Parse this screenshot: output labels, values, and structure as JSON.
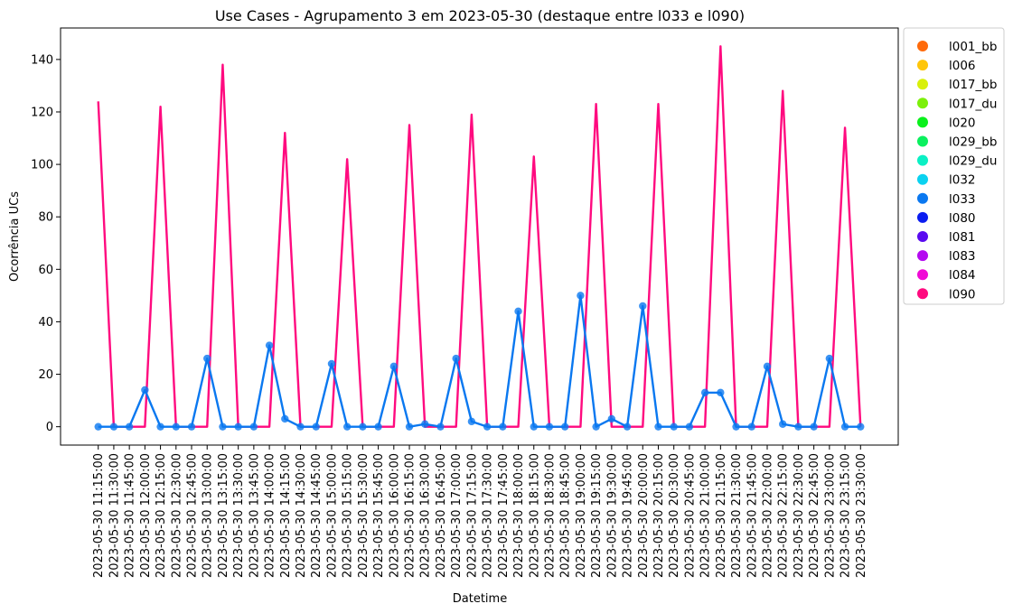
{
  "chart_data": {
    "type": "line",
    "title": "Use Cases - Agrupamento 3 em 2023-05-30 (destaque entre l033 e l090)",
    "xlabel": "Datetime",
    "ylabel": "Ocorrência UCs",
    "ylim": [
      -7,
      152
    ],
    "yticks": [
      0,
      20,
      40,
      60,
      80,
      100,
      120,
      140
    ],
    "grid": false,
    "legend_position": "outside-right",
    "x": [
      "2023-05-30 11:15:00",
      "2023-05-30 11:30:00",
      "2023-05-30 11:45:00",
      "2023-05-30 12:00:00",
      "2023-05-30 12:15:00",
      "2023-05-30 12:30:00",
      "2023-05-30 12:45:00",
      "2023-05-30 13:00:00",
      "2023-05-30 13:15:00",
      "2023-05-30 13:30:00",
      "2023-05-30 13:45:00",
      "2023-05-30 14:00:00",
      "2023-05-30 14:15:00",
      "2023-05-30 14:30:00",
      "2023-05-30 14:45:00",
      "2023-05-30 15:00:00",
      "2023-05-30 15:15:00",
      "2023-05-30 15:30:00",
      "2023-05-30 15:45:00",
      "2023-05-30 16:00:00",
      "2023-05-30 16:15:00",
      "2023-05-30 16:30:00",
      "2023-05-30 16:45:00",
      "2023-05-30 17:00:00",
      "2023-05-30 17:15:00",
      "2023-05-30 17:30:00",
      "2023-05-30 17:45:00",
      "2023-05-30 18:00:00",
      "2023-05-30 18:15:00",
      "2023-05-30 18:30:00",
      "2023-05-30 18:45:00",
      "2023-05-30 19:00:00",
      "2023-05-30 19:15:00",
      "2023-05-30 19:30:00",
      "2023-05-30 19:45:00",
      "2023-05-30 20:00:00",
      "2023-05-30 20:15:00",
      "2023-05-30 20:30:00",
      "2023-05-30 20:45:00",
      "2023-05-30 21:00:00",
      "2023-05-30 21:15:00",
      "2023-05-30 21:30:00",
      "2023-05-30 21:45:00",
      "2023-05-30 22:00:00",
      "2023-05-30 22:15:00",
      "2023-05-30 22:30:00",
      "2023-05-30 22:45:00",
      "2023-05-30 23:00:00",
      "2023-05-30 23:15:00",
      "2023-05-30 23:30:00"
    ],
    "series": [
      {
        "name": "l090",
        "color": "#ff0a7f",
        "markers": false,
        "values": [
          124,
          0,
          0,
          0,
          122,
          0,
          0,
          0,
          138,
          0,
          0,
          0,
          112,
          0,
          0,
          0,
          102,
          0,
          0,
          0,
          115,
          0,
          0,
          0,
          119,
          0,
          0,
          0,
          103,
          0,
          0,
          0,
          123,
          0,
          0,
          0,
          123,
          0,
          0,
          0,
          145,
          0,
          0,
          0,
          128,
          0,
          0,
          0,
          114,
          0
        ]
      },
      {
        "name": "l033",
        "color": "#0a78f0",
        "markers": true,
        "values": [
          0,
          0,
          0,
          14,
          0,
          0,
          0,
          26,
          0,
          0,
          0,
          31,
          3,
          0,
          0,
          24,
          0,
          0,
          0,
          23,
          0,
          1,
          0,
          26,
          2,
          0,
          0,
          44,
          0,
          0,
          0,
          50,
          0,
          3,
          0,
          46,
          0,
          0,
          0,
          13,
          13,
          0,
          0,
          23,
          1,
          0,
          0,
          26,
          0,
          0
        ]
      }
    ],
    "legend": [
      {
        "label": "l001_bb",
        "color": "#ff6a0a"
      },
      {
        "label": "l006",
        "color": "#ffc60a"
      },
      {
        "label": "l017_bb",
        "color": "#d8f00a"
      },
      {
        "label": "l017_du",
        "color": "#7cf00a"
      },
      {
        "label": "l020",
        "color": "#0af01c"
      },
      {
        "label": "l029_bb",
        "color": "#0af05e"
      },
      {
        "label": "l029_du",
        "color": "#0af0c4"
      },
      {
        "label": "l032",
        "color": "#0ad2f0"
      },
      {
        "label": "l033",
        "color": "#0a78f0"
      },
      {
        "label": "l080",
        "color": "#0a1cf0"
      },
      {
        "label": "l081",
        "color": "#5a0af0"
      },
      {
        "label": "l083",
        "color": "#b40af0"
      },
      {
        "label": "l084",
        "color": "#f00ad6"
      },
      {
        "label": "l090",
        "color": "#ff0a7f"
      }
    ]
  }
}
